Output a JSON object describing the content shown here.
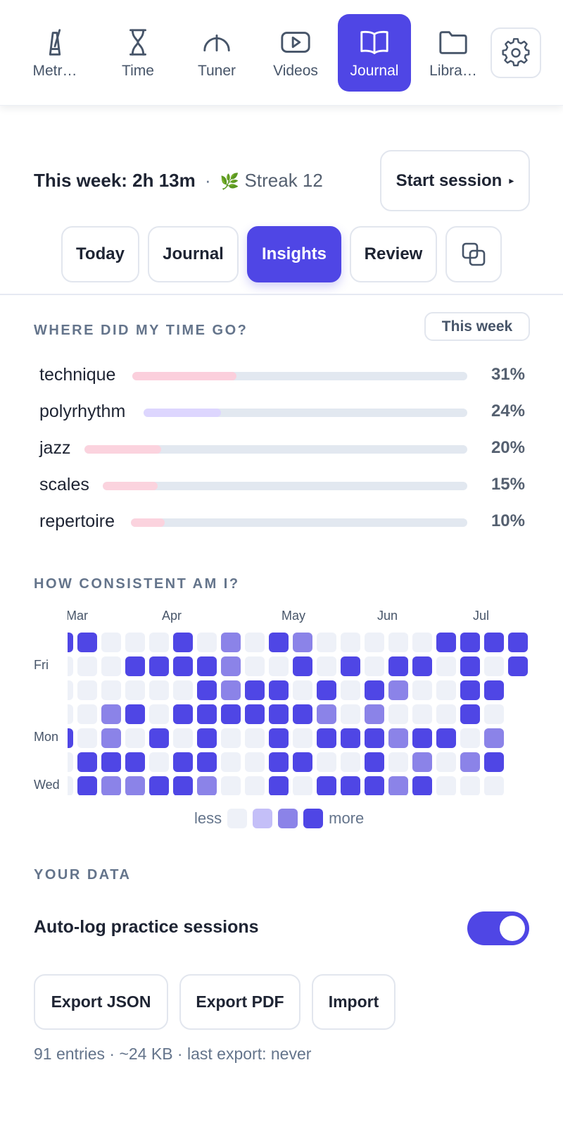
{
  "nav": {
    "items": [
      {
        "label": "Metr…",
        "icon": "metronome-icon",
        "active": false
      },
      {
        "label": "Time",
        "icon": "hourglass-icon",
        "active": false
      },
      {
        "label": "Tuner",
        "icon": "tuner-gauge-icon",
        "active": false
      },
      {
        "label": "Videos",
        "icon": "video-play-icon",
        "active": false
      },
      {
        "label": "Journal",
        "icon": "open-book-icon",
        "active": true
      },
      {
        "label": "Libra…",
        "icon": "folder-icon",
        "active": false
      }
    ],
    "settings_icon": "gear-icon"
  },
  "summary": {
    "week": "This week: 2h 13m",
    "separator": "·",
    "streak_icon": "leaf-icon",
    "streak": "Streak 12",
    "start_button": "Start session",
    "start_button_icon": "play-triangle-icon"
  },
  "tabs": [
    {
      "label": "Today",
      "active": false
    },
    {
      "label": "Journal",
      "active": false
    },
    {
      "label": "Insights",
      "active": true
    },
    {
      "label": "Review",
      "active": false
    }
  ],
  "tab_compare_icon": "overlapping-squares-icon",
  "time": {
    "heading": "WHERE DID MY TIME GO?",
    "range_button": "This week",
    "rows": [
      {
        "label": "technique",
        "pct_text": "31%",
        "value": 0.31,
        "color": "#fbcfdc"
      },
      {
        "label": "polyrhythm",
        "pct_text": "24%",
        "value": 0.24,
        "color": "#ddd6fe"
      },
      {
        "label": "jazz",
        "pct_text": "20%",
        "value": 0.2,
        "color": "#fbd3de"
      },
      {
        "label": "scales",
        "pct_text": "15%",
        "value": 0.15,
        "color": "#fbd3de"
      },
      {
        "label": "repertoire",
        "pct_text": "10%",
        "value": 0.1,
        "color": "#fbd3de"
      }
    ],
    "track_color": "#e2e8f0"
  },
  "consistency": {
    "heading": "HOW CONSISTENT AM I?",
    "months": [
      "Mar",
      "Apr",
      "May",
      "Jun",
      "Jul"
    ],
    "day_labels": {
      "row1": "Fri",
      "row4": "Mon",
      "row6": "Wed"
    },
    "level_colors": [
      "#eef1f8",
      "#c4bff8",
      "#8b83e8",
      "#4f46e5"
    ],
    "weeks": [
      [
        3,
        0,
        0,
        0,
        3,
        0,
        0
      ],
      [
        3,
        0,
        0,
        0,
        0,
        3,
        3
      ],
      [
        0,
        0,
        0,
        2,
        2,
        3,
        2
      ],
      [
        0,
        3,
        0,
        3,
        0,
        3,
        2
      ],
      [
        0,
        3,
        0,
        0,
        3,
        0,
        3
      ],
      [
        3,
        3,
        0,
        3,
        0,
        3,
        3
      ],
      [
        0,
        3,
        3,
        3,
        3,
        3,
        2
      ],
      [
        2,
        2,
        2,
        3,
        0,
        0,
        0
      ],
      [
        0,
        0,
        3,
        3,
        0,
        0,
        0
      ],
      [
        3,
        0,
        3,
        3,
        3,
        3,
        3
      ],
      [
        2,
        3,
        0,
        3,
        0,
        3,
        0
      ],
      [
        0,
        0,
        3,
        2,
        3,
        0,
        3
      ],
      [
        0,
        3,
        0,
        0,
        3,
        0,
        3
      ],
      [
        0,
        0,
        3,
        2,
        3,
        3,
        3
      ],
      [
        0,
        3,
        2,
        0,
        2,
        0,
        2
      ],
      [
        0,
        3,
        0,
        0,
        3,
        2,
        3
      ],
      [
        3,
        0,
        0,
        0,
        3,
        0,
        0
      ],
      [
        3,
        3,
        3,
        3,
        0,
        2,
        0
      ],
      [
        3,
        0,
        3,
        0,
        2,
        3,
        0
      ],
      [
        3,
        3,
        null,
        null,
        null,
        null,
        null
      ]
    ],
    "legend_less": "less",
    "legend_more": "more"
  },
  "data": {
    "heading": "YOUR DATA",
    "autolog_label": "Auto-log practice sessions",
    "autolog_on": true,
    "buttons": [
      "Export JSON",
      "Export PDF",
      "Import"
    ],
    "footnote": "91 entries · ~24 KB · last export: never"
  }
}
